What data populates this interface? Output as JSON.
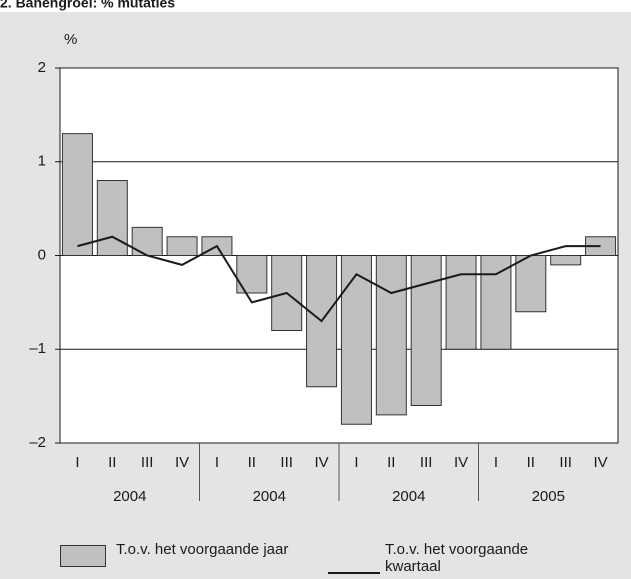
{
  "chart_data": {
    "type": "bar_line",
    "title": "2. Banengroei: % mutaties",
    "y_unit": "%",
    "categories": [
      "I",
      "II",
      "III",
      "IV",
      "I",
      "II",
      "III",
      "IV",
      "I",
      "II",
      "III",
      "IV",
      "I",
      "II",
      "III",
      "IV"
    ],
    "groups": [
      "2004",
      "2004",
      "2004",
      "2005"
    ],
    "series": [
      {
        "name": "T.o.v. het voorgaande jaar",
        "type": "bar",
        "color": "#c0c0c0",
        "values": [
          1.3,
          0.8,
          0.3,
          0.2,
          0.2,
          -0.4,
          -0.8,
          -1.4,
          -1.8,
          -1.7,
          -1.6,
          -1.0,
          -1.0,
          -0.6,
          -0.1,
          0.2
        ]
      },
      {
        "name": "T.o.v. het voorgaande kwartaal",
        "type": "line",
        "color": "#1a1a1a",
        "values": [
          0.1,
          0.2,
          0.0,
          -0.1,
          0.1,
          -0.5,
          -0.4,
          -0.7,
          -0.2,
          -0.4,
          -0.3,
          -0.2,
          -0.2,
          0.0,
          0.1,
          0.1
        ]
      }
    ],
    "ylim": [
      -2,
      2
    ],
    "yticks": [
      {
        "value": -2,
        "label": "–2"
      },
      {
        "value": -1,
        "label": "–1"
      },
      0,
      1,
      2
    ],
    "grid": true
  }
}
